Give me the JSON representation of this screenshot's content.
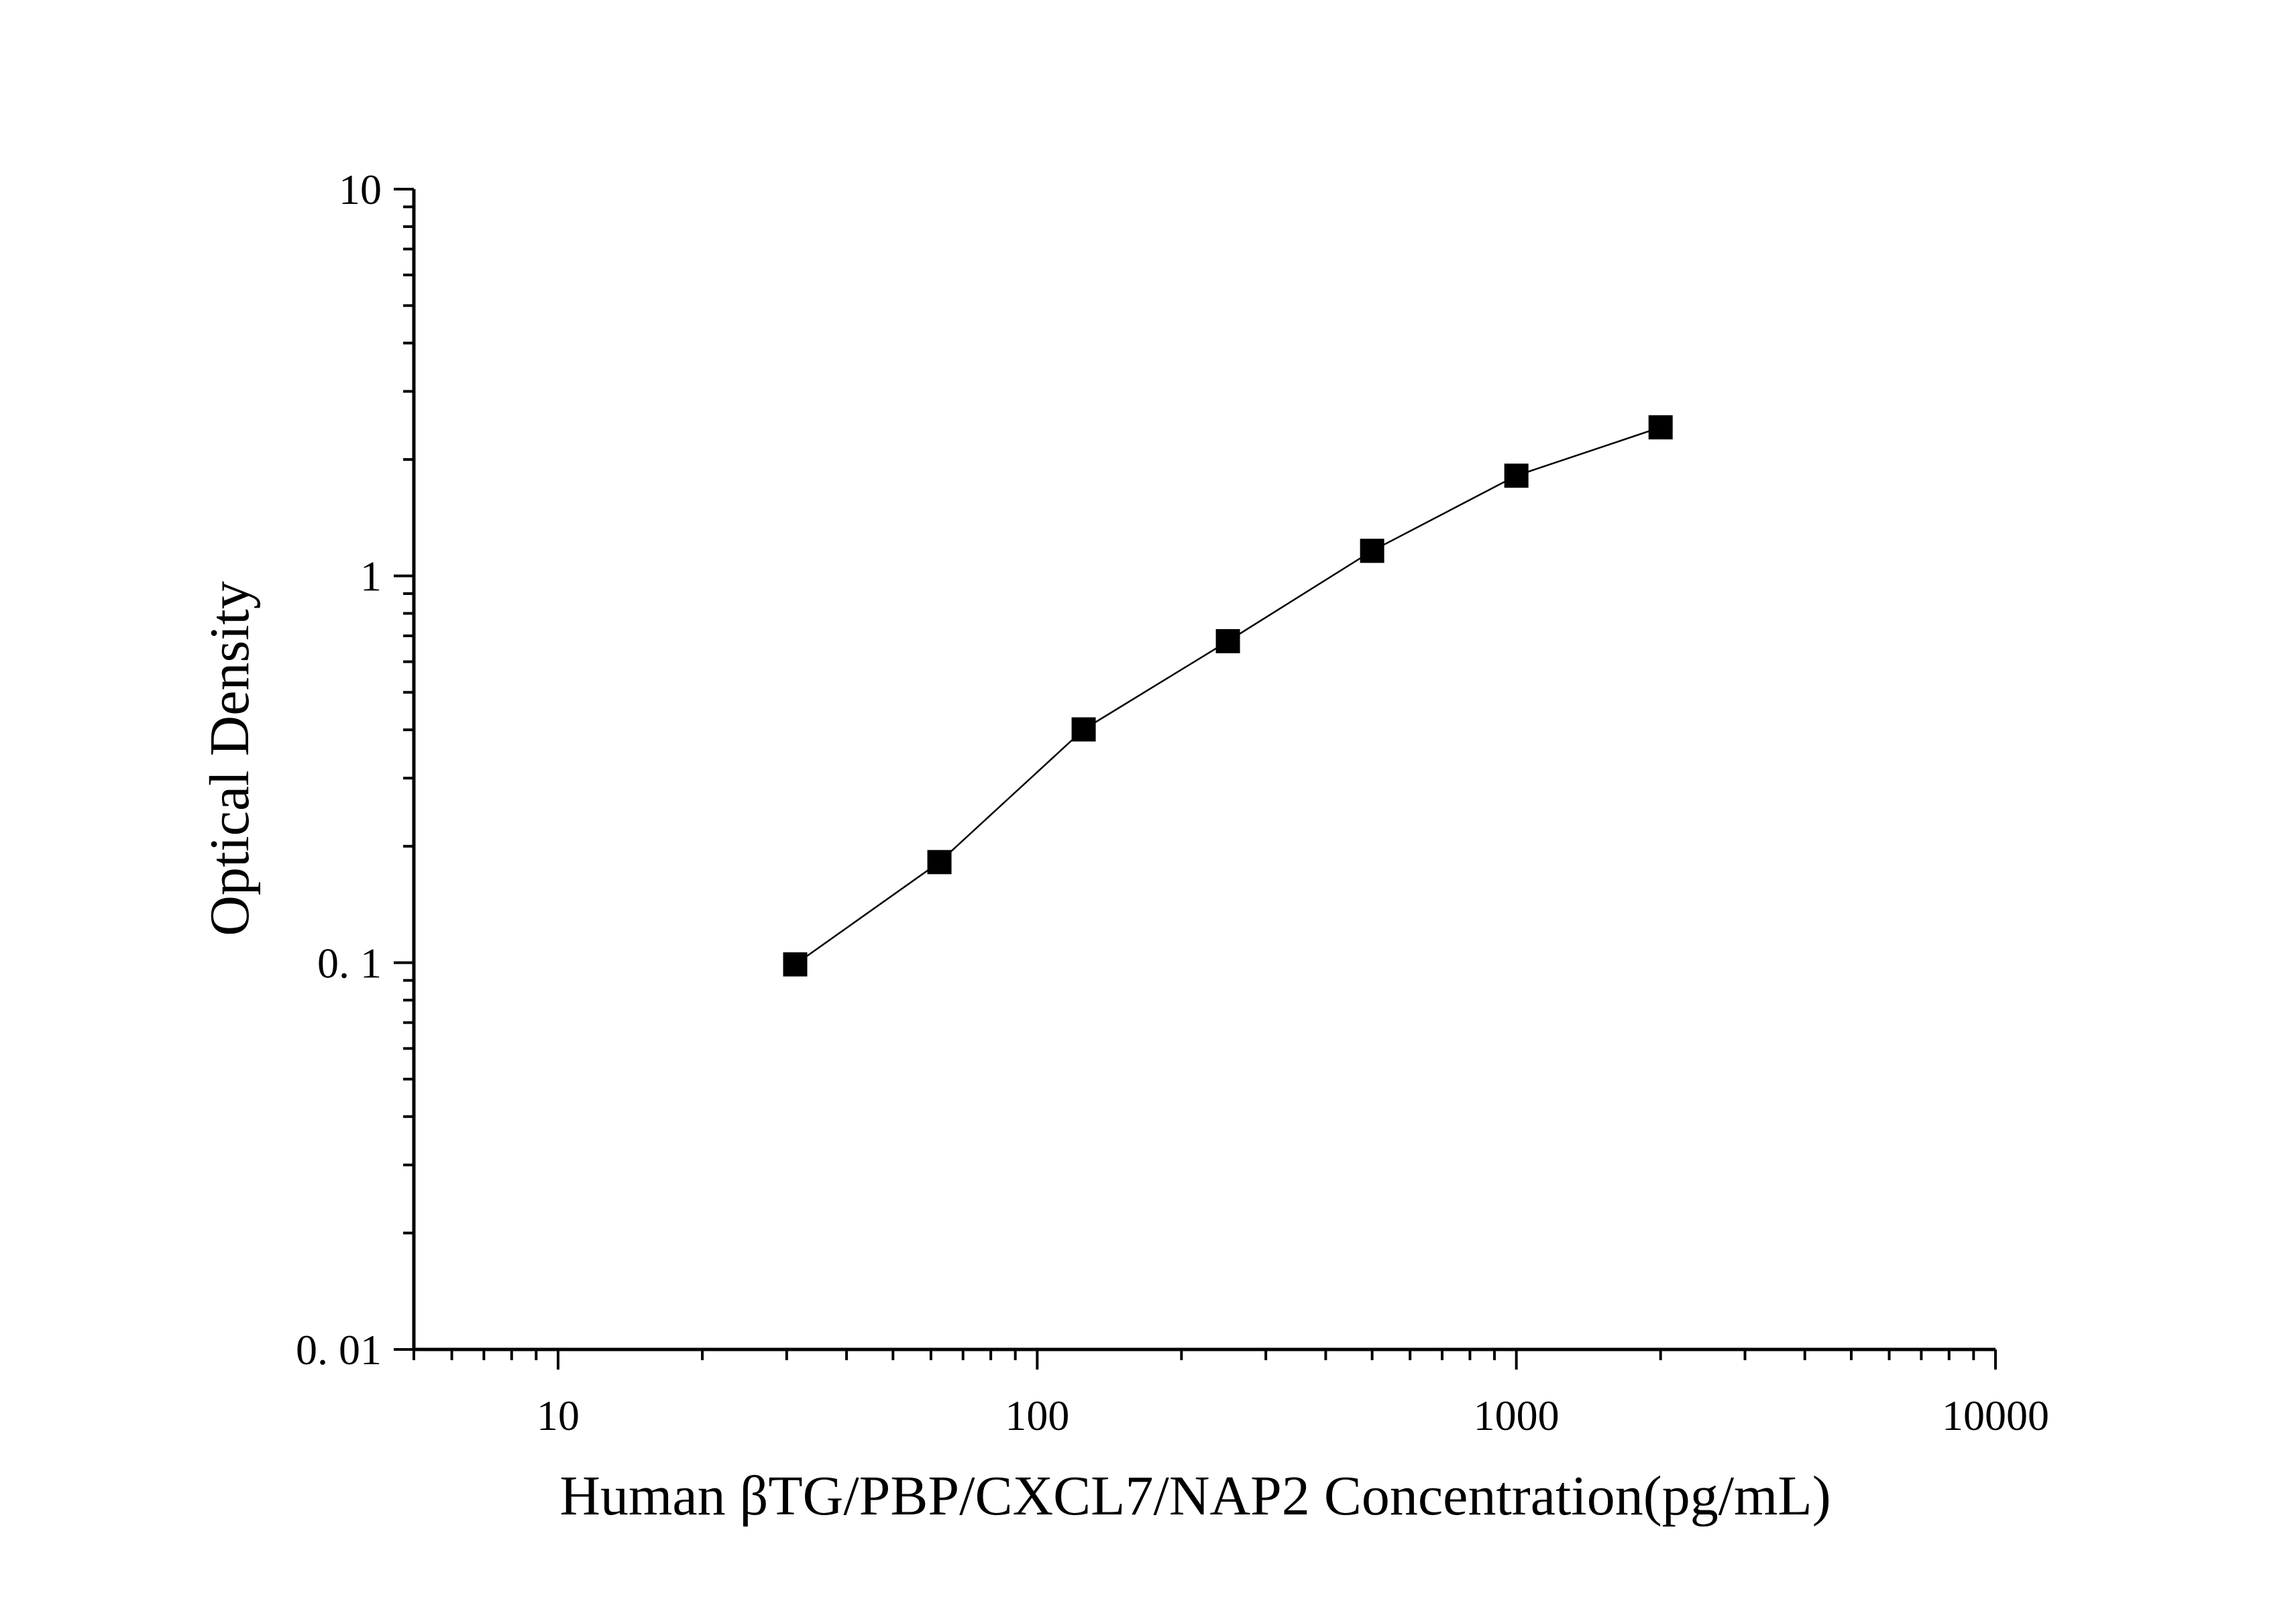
{
  "chart_data": {
    "type": "scatter",
    "title": "",
    "xlabel": "Human βTG/PBP/CXCL7/NAP2 Concentration(pg/mL)",
    "ylabel": "Optical Density",
    "x_scale": "log",
    "y_scale": "log",
    "xlim": [
      5,
      10000
    ],
    "ylim": [
      0.01,
      10
    ],
    "x_ticks": [
      10,
      100,
      1000,
      10000
    ],
    "x_tick_labels": [
      "10",
      "100",
      "1000",
      "10000"
    ],
    "y_ticks": [
      0.01,
      0.1,
      1,
      10
    ],
    "y_tick_labels": [
      "0. 01",
      "0. 1",
      "1",
      "10"
    ],
    "grid": false,
    "legend": "none",
    "connect_points": true,
    "series": [
      {
        "x": [
          31.25,
          62.5,
          125,
          250,
          500,
          1000,
          2000
        ],
        "y": [
          0.099,
          0.182,
          0.401,
          0.678,
          1.161,
          1.816,
          2.422
        ],
        "marker": "square",
        "color": "#000000"
      }
    ]
  }
}
